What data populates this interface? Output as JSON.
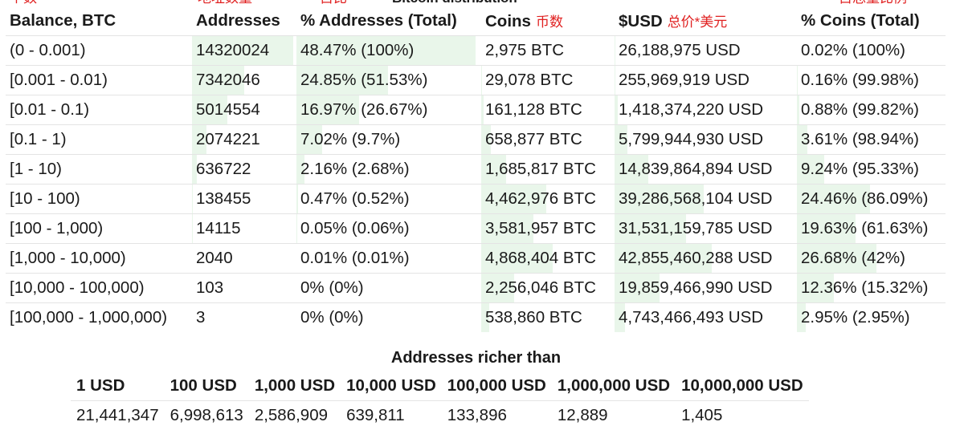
{
  "annotations": {
    "count_cn": "个数",
    "addresses_cn": "地址数量",
    "share_cn": "占比",
    "title_partial": "Bitcoin distribution",
    "total_share_cn": "占总量比例"
  },
  "distribution": {
    "headers": {
      "balance": "Balance, BTC",
      "addresses": "Addresses",
      "pct_addresses": "% Addresses (Total)",
      "coins": "Coins",
      "coins_cn": "币数",
      "usd": "$USD",
      "usd_cn": "总价*美元",
      "pct_coins": "% Coins (Total)"
    },
    "rows": [
      {
        "balance": "(0 - 0.001)",
        "addresses": "14320024",
        "pct_addresses": "48.47% (100%)",
        "coins": "2,975 BTC",
        "usd": "26,188,975 USD",
        "pct_coins": "0.02% (100%)",
        "addr_frac": 0.4847,
        "coin_frac": 0.0002
      },
      {
        "balance": "[0.001 - 0.01)",
        "addresses": "7342046",
        "pct_addresses": "24.85% (51.53%)",
        "coins": "29,078 BTC",
        "usd": "255,969,919 USD",
        "pct_coins": "0.16% (99.98%)",
        "addr_frac": 0.2485,
        "coin_frac": 0.0016
      },
      {
        "balance": "[0.01 - 0.1)",
        "addresses": "5014554",
        "pct_addresses": "16.97% (26.67%)",
        "coins": "161,128 BTC",
        "usd": "1,418,374,220 USD",
        "pct_coins": "0.88% (99.82%)",
        "addr_frac": 0.1697,
        "coin_frac": 0.0088
      },
      {
        "balance": "[0.1 - 1)",
        "addresses": "2074221",
        "pct_addresses": "7.02% (9.7%)",
        "coins": "658,877 BTC",
        "usd": "5,799,944,930 USD",
        "pct_coins": "3.61% (98.94%)",
        "addr_frac": 0.0702,
        "coin_frac": 0.0361
      },
      {
        "balance": "[1 - 10)",
        "addresses": "636722",
        "pct_addresses": "2.16% (2.68%)",
        "coins": "1,685,817 BTC",
        "usd": "14,839,864,894 USD",
        "pct_coins": "9.24% (95.33%)",
        "addr_frac": 0.0216,
        "coin_frac": 0.0924
      },
      {
        "balance": "[10 - 100)",
        "addresses": "138455",
        "pct_addresses": "0.47% (0.52%)",
        "coins": "4,462,976 BTC",
        "usd": "39,286,568,104 USD",
        "pct_coins": "24.46% (86.09%)",
        "addr_frac": 0.0047,
        "coin_frac": 0.2446
      },
      {
        "balance": "[100 - 1,000)",
        "addresses": "14115",
        "pct_addresses": "0.05% (0.06%)",
        "coins": "3,581,957 BTC",
        "usd": "31,531,159,785 USD",
        "pct_coins": "19.63% (61.63%)",
        "addr_frac": 0.0005,
        "coin_frac": 0.1963
      },
      {
        "balance": "[1,000 - 10,000)",
        "addresses": "2040",
        "pct_addresses": "0.01% (0.01%)",
        "coins": "4,868,404 BTC",
        "usd": "42,855,460,288 USD",
        "pct_coins": "26.68% (42%)",
        "addr_frac": 0.0001,
        "coin_frac": 0.2668
      },
      {
        "balance": "[10,000 - 100,000)",
        "addresses": "103",
        "pct_addresses": "0% (0%)",
        "coins": "2,256,046 BTC",
        "usd": "19,859,466,990 USD",
        "pct_coins": "12.36% (15.32%)",
        "addr_frac": 0,
        "coin_frac": 0.1236
      },
      {
        "balance": "[100,000 - 1,000,000)",
        "addresses": "3",
        "pct_addresses": "0% (0%)",
        "coins": "538,860 BTC",
        "usd": "4,743,466,493 USD",
        "pct_coins": "2.95% (2.95%)",
        "addr_frac": 0,
        "coin_frac": 0.0295
      }
    ]
  },
  "richer": {
    "title": "Addresses richer than",
    "headers": [
      "1 USD",
      "100 USD",
      "1,000 USD",
      "10,000 USD",
      "100,000 USD",
      "1,000,000 USD",
      "10,000,000 USD"
    ],
    "values": [
      "21,441,347",
      "6,998,613",
      "2,586,909",
      "639,811",
      "133,896",
      "12,889",
      "1,405"
    ]
  },
  "colors": {
    "bar_fill": "#e9f6ea",
    "annotation_red": "#e02020"
  }
}
